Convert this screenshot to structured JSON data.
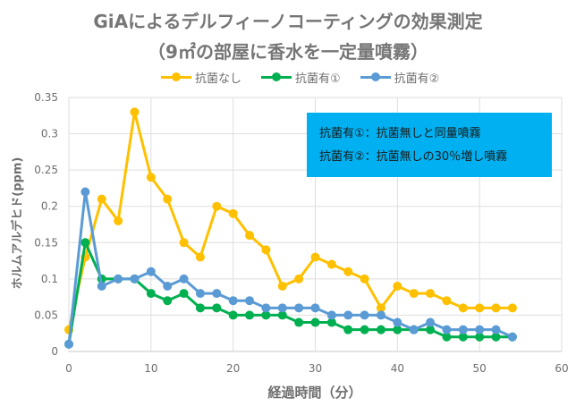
{
  "chart_data": {
    "type": "line",
    "title": "GiAによるデルフィーノコーティングの効果測定",
    "subtitle": "（9㎡の部屋に香水を一定量噴霧）",
    "xlabel": "経過時間（分）",
    "ylabel": "ホルムアルデヒド(ppm)",
    "xlim": [
      0,
      60
    ],
    "ylim": [
      0,
      0.35
    ],
    "xticks": [
      "0",
      "10",
      "20",
      "30",
      "40",
      "50",
      "60"
    ],
    "yticks": [
      "0",
      "0.05",
      "0.1",
      "0.15",
      "0.2",
      "0.25",
      "0.3",
      "0.35"
    ],
    "grid": true,
    "legend_position": "top",
    "x": [
      0,
      2,
      4,
      6,
      8,
      10,
      12,
      14,
      16,
      18,
      20,
      22,
      24,
      26,
      28,
      30,
      32,
      34,
      36,
      38,
      40,
      42,
      44,
      46,
      48,
      50,
      52,
      54
    ],
    "series": [
      {
        "name": "抗菌なし",
        "color": "#ffc000",
        "values": [
          0.03,
          0.13,
          0.21,
          0.18,
          0.33,
          0.24,
          0.21,
          0.15,
          0.13,
          0.2,
          0.19,
          0.16,
          0.14,
          0.09,
          0.1,
          0.13,
          0.12,
          0.11,
          0.1,
          0.06,
          0.09,
          0.08,
          0.08,
          0.07,
          0.06,
          0.06,
          0.06,
          0.06
        ]
      },
      {
        "name": "抗菌有①",
        "color": "#00b050",
        "values": [
          0.01,
          0.15,
          0.1,
          0.1,
          0.1,
          0.08,
          0.07,
          0.08,
          0.06,
          0.06,
          0.05,
          0.05,
          0.05,
          0.05,
          0.04,
          0.04,
          0.04,
          0.03,
          0.03,
          0.03,
          0.03,
          0.03,
          0.03,
          0.02,
          0.02,
          0.02,
          0.02,
          0.02
        ]
      },
      {
        "name": "抗菌有②",
        "color": "#5b9bd5",
        "values": [
          0.01,
          0.22,
          0.09,
          0.1,
          0.1,
          0.11,
          0.09,
          0.1,
          0.08,
          0.08,
          0.07,
          0.07,
          0.06,
          0.06,
          0.06,
          0.06,
          0.05,
          0.05,
          0.05,
          0.05,
          0.04,
          0.03,
          0.04,
          0.03,
          0.03,
          0.03,
          0.03,
          0.02
        ]
      }
    ],
    "annotations": [
      "抗菌有①：抗菌無しと同量噴霧",
      "抗菌有②：抗菌無しの30％増し噴霧"
    ]
  }
}
